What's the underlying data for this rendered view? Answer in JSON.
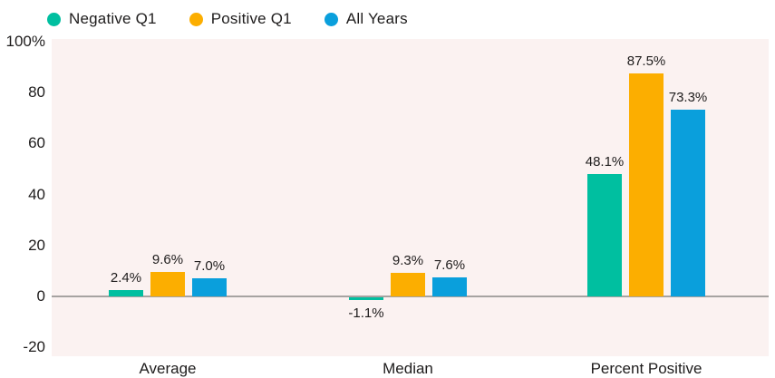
{
  "chart_data": {
    "type": "bar",
    "title": "",
    "xlabel": "",
    "ylabel": "",
    "categories": [
      "Average",
      "Median",
      "Percent Positive"
    ],
    "series": [
      {
        "name": "Negative Q1",
        "color": "#00BFA0",
        "values": [
          2.4,
          -1.1,
          48.1
        ],
        "labels": [
          "2.4%",
          "-1.1%",
          "48.1%"
        ]
      },
      {
        "name": "Positive Q1",
        "color": "#FCAE00",
        "values": [
          9.6,
          9.3,
          87.5
        ],
        "labels": [
          "9.6%",
          "9.3%",
          "87.5%"
        ]
      },
      {
        "name": "All Years",
        "color": "#0A9FDC",
        "values": [
          7.0,
          7.6,
          73.3
        ],
        "labels": [
          "7.0%",
          "7.6%",
          "73.3%"
        ]
      }
    ],
    "y_axis": {
      "tick_labels": [
        "100%",
        "80",
        "60",
        "40",
        "20",
        "0",
        "-20"
      ],
      "tick_values": [
        100,
        80,
        60,
        40,
        20,
        0,
        -20
      ],
      "ylim": [
        -23.5,
        101
      ]
    },
    "legend_position": "top",
    "grid": false,
    "colors": {
      "plot_background": "#FBF2F1",
      "outer_background": "#FFFFFF",
      "zero_line": "#A6A3A1",
      "text": "#1E1C1C"
    }
  }
}
